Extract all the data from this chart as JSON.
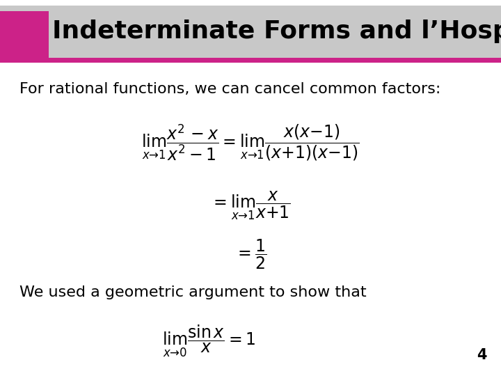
{
  "title": "Indeterminate Forms and l’Hospital’s Rule",
  "title_bg_color": "#c8c8c8",
  "title_accent_color": "#cc2288",
  "title_fontsize": 26,
  "body_text1": "For rational functions, we can cancel common factors:",
  "body_text2": "We used a geometric argument to show that",
  "page_number": "4",
  "bg_color": "#ffffff",
  "text_color": "#000000",
  "body_fontsize": 16,
  "eq_fontsize": 17
}
